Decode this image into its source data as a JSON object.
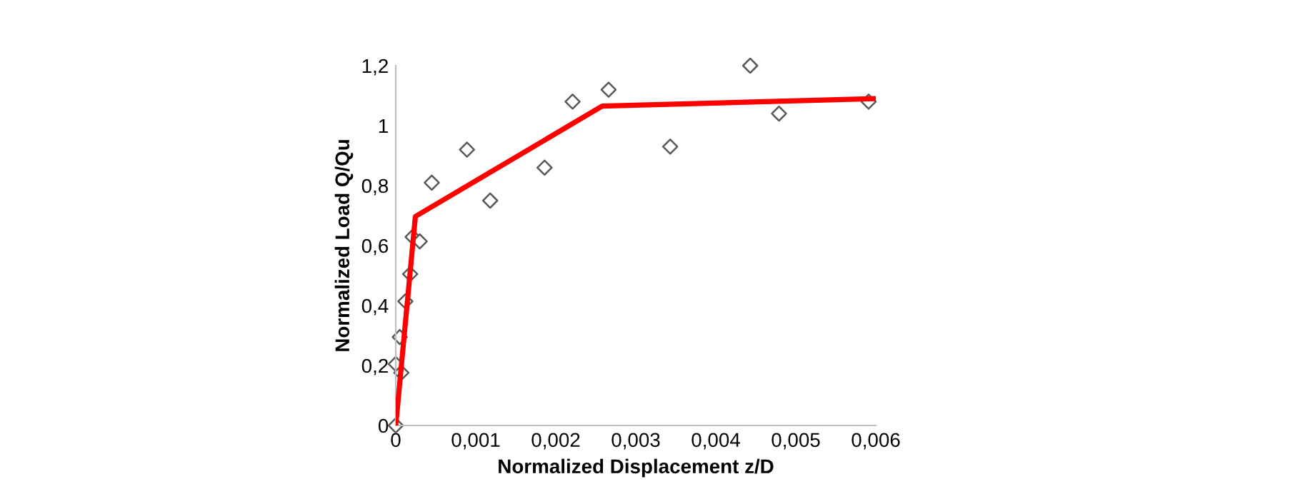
{
  "chart_data": {
    "type": "scatter",
    "xlabel": "Normalized Displacement z/D",
    "ylabel": "Normalized Load Q/Qu",
    "xlim": [
      0,
      0.006
    ],
    "ylim": [
      0,
      1.2
    ],
    "xticks": [
      0,
      {
        "value": 0.001,
        "label": "0,001"
      },
      {
        "value": 0.002,
        "label": "0,002"
      },
      {
        "value": 0.003,
        "label": "0,003"
      },
      {
        "value": 0.004,
        "label": "0,004"
      },
      {
        "value": 0.005,
        "label": "0,005"
      },
      {
        "value": 0.006,
        "label": "0,006"
      }
    ],
    "yticks": [
      0,
      {
        "value": 0.2,
        "label": "0,2"
      },
      {
        "value": 0.4,
        "label": "0,4"
      },
      {
        "value": 0.6,
        "label": "0,6"
      },
      {
        "value": 0.8,
        "label": "0,8"
      },
      1,
      {
        "value": 1.2,
        "label": "1,2"
      }
    ],
    "grid": false,
    "legend": false,
    "series": [
      {
        "color": "#595959",
        "marker": "diamond",
        "x": [
          0,
          0,
          7e-05,
          5e-05,
          0.00012,
          0.00018,
          0.00021,
          0.0003,
          0.00045,
          0.00089,
          0.00118,
          0.00186,
          0.00221,
          0.00266,
          0.00343,
          0.00443,
          0.00479,
          0.00591
        ],
        "values": [
          0,
          0.205,
          0.176,
          0.295,
          0.414,
          0.505,
          0.629,
          0.614,
          0.81,
          0.92,
          0.75,
          0.86,
          1.08,
          1.12,
          0.93,
          1.2,
          1.04,
          1.08
        ]
      },
      {
        "type": "line",
        "color": "#ff0000",
        "marker": "none",
        "line_style": "solid",
        "x": [
          0,
          0.000245,
          0.00258,
          0.00598
        ],
        "values": [
          0,
          0.697,
          1.065,
          1.09
        ]
      }
    ]
  }
}
